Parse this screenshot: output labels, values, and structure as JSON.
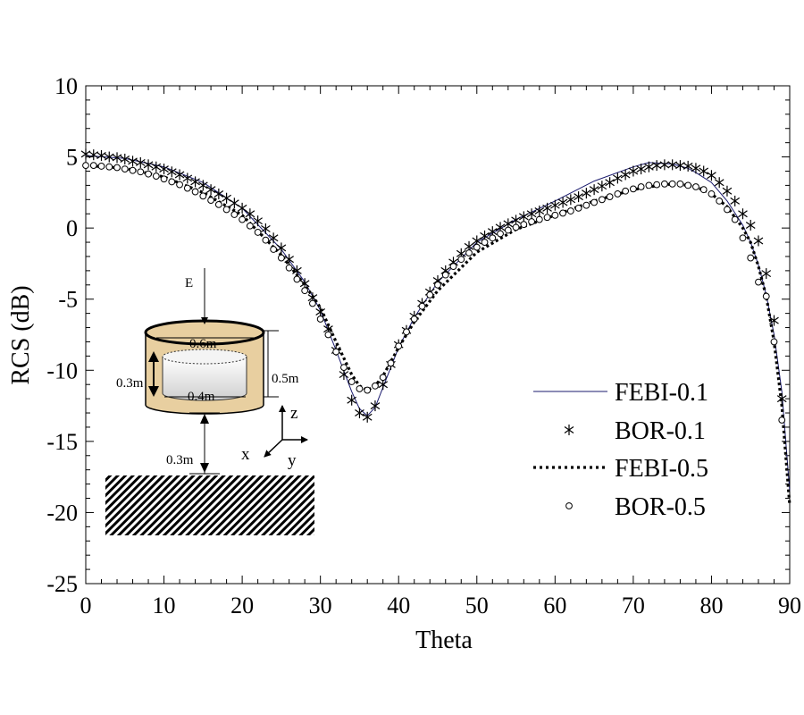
{
  "chart_data": {
    "type": "line",
    "title": "",
    "xlabel": "Theta",
    "ylabel": "RCS (dB)",
    "xlim": [
      0,
      90
    ],
    "ylim": [
      -25,
      10
    ],
    "xticks": [
      0,
      10,
      20,
      30,
      40,
      50,
      60,
      70,
      80,
      90
    ],
    "yticks": [
      10,
      5,
      0,
      -5,
      -10,
      -15,
      -20,
      -25
    ],
    "xtick_labels": [
      "0",
      "10",
      "20",
      "30",
      "40",
      "50",
      "60",
      "70",
      "80",
      "90"
    ],
    "ytick_labels": [
      "10",
      "5",
      "0",
      "-5",
      "-10",
      "-15",
      "-20",
      "-25"
    ],
    "legend_position": "right",
    "series": [
      {
        "name": "FEBI-0.1",
        "style": "thin-solid",
        "color": "#1a1a6e",
        "x": [
          0,
          5,
          10,
          15,
          20,
          25,
          28,
          30,
          32,
          34,
          35,
          36,
          37,
          38,
          40,
          42,
          45,
          50,
          55,
          60,
          65,
          70,
          72,
          75,
          77,
          78,
          80,
          82,
          84,
          85,
          86,
          87,
          88,
          89,
          90
        ],
        "y": [
          5.1,
          4.9,
          4.3,
          3.2,
          1.4,
          -1.5,
          -3.8,
          -5.8,
          -8.6,
          -11.5,
          -12.7,
          -13.2,
          -12.6,
          -11.2,
          -8.4,
          -6.3,
          -3.8,
          -1.0,
          0.6,
          1.9,
          3.3,
          4.3,
          4.6,
          4.5,
          4.2,
          3.9,
          3.2,
          1.9,
          0.2,
          -1.0,
          -2.6,
          -4.7,
          -7.5,
          -11.5,
          -18.5
        ]
      },
      {
        "name": "BOR-0.1",
        "style": "marker-asterisk",
        "color": "#000000",
        "x": [
          0,
          1,
          2,
          3,
          4,
          5,
          6,
          7,
          8,
          9,
          10,
          11,
          12,
          13,
          14,
          15,
          16,
          17,
          18,
          19,
          20,
          21,
          22,
          23,
          24,
          25,
          26,
          27,
          28,
          29,
          30,
          31,
          32,
          33,
          34,
          35,
          36,
          37,
          38,
          39,
          40,
          41,
          42,
          43,
          44,
          45,
          46,
          47,
          48,
          49,
          50,
          51,
          52,
          53,
          54,
          55,
          56,
          57,
          58,
          59,
          60,
          61,
          62,
          63,
          64,
          65,
          66,
          67,
          68,
          69,
          70,
          71,
          72,
          73,
          74,
          75,
          76,
          77,
          78,
          79,
          80,
          81,
          82,
          83,
          84,
          85,
          86,
          87,
          88,
          89
        ],
        "y": [
          5.2,
          5.15,
          5.1,
          5.0,
          4.95,
          4.85,
          4.7,
          4.6,
          4.45,
          4.3,
          4.15,
          3.95,
          3.75,
          3.5,
          3.25,
          3.0,
          2.7,
          2.4,
          2.1,
          1.75,
          1.4,
          1.0,
          0.5,
          -0.05,
          -0.7,
          -1.4,
          -2.2,
          -3.0,
          -3.9,
          -4.9,
          -5.9,
          -7.1,
          -8.6,
          -10.3,
          -12.1,
          -13.0,
          -13.3,
          -12.5,
          -11.0,
          -9.6,
          -8.2,
          -7.2,
          -6.2,
          -5.3,
          -4.5,
          -3.7,
          -3.0,
          -2.4,
          -1.8,
          -1.3,
          -0.9,
          -0.55,
          -0.25,
          0.05,
          0.3,
          0.55,
          0.8,
          1.0,
          1.2,
          1.4,
          1.6,
          1.8,
          2.0,
          2.2,
          2.45,
          2.7,
          2.95,
          3.2,
          3.5,
          3.75,
          4.0,
          4.15,
          4.3,
          4.4,
          4.45,
          4.45,
          4.4,
          4.35,
          4.2,
          4.0,
          3.7,
          3.2,
          2.6,
          1.9,
          1.0,
          0.2,
          -0.9,
          -3.2,
          -6.5,
          -12.0
        ]
      },
      {
        "name": "FEBI-0.5",
        "style": "thick-dotted",
        "color": "#000000",
        "x": [
          0,
          5,
          10,
          15,
          20,
          25,
          28,
          30,
          32,
          34,
          35,
          36,
          37,
          38,
          40,
          42,
          45,
          50,
          55,
          60,
          65,
          70,
          72,
          75,
          77,
          78,
          80,
          82,
          84,
          85,
          86,
          87,
          88,
          89,
          90
        ],
        "y": [
          4.4,
          4.2,
          3.6,
          2.5,
          0.9,
          -1.9,
          -4.0,
          -5.6,
          -8.0,
          -10.3,
          -11.1,
          -11.4,
          -11.1,
          -10.4,
          -8.4,
          -6.6,
          -4.4,
          -1.7,
          -0.1,
          0.9,
          1.9,
          2.7,
          2.9,
          3.1,
          3.0,
          2.9,
          2.4,
          1.5,
          0.0,
          -1.0,
          -2.7,
          -4.8,
          -8.0,
          -12.5,
          -19.5
        ]
      },
      {
        "name": "BOR-0.5",
        "style": "marker-circle",
        "color": "#000000",
        "x": [
          0,
          1,
          2,
          3,
          4,
          5,
          6,
          7,
          8,
          9,
          10,
          11,
          12,
          13,
          14,
          15,
          16,
          17,
          18,
          19,
          20,
          21,
          22,
          23,
          24,
          25,
          26,
          27,
          28,
          29,
          30,
          31,
          32,
          33,
          34,
          35,
          36,
          37,
          38,
          39,
          40,
          41,
          42,
          43,
          44,
          45,
          46,
          47,
          48,
          49,
          50,
          51,
          52,
          53,
          54,
          55,
          56,
          57,
          58,
          59,
          60,
          61,
          62,
          63,
          64,
          65,
          66,
          67,
          68,
          69,
          70,
          71,
          72,
          73,
          74,
          75,
          76,
          77,
          78,
          79,
          80,
          81,
          82,
          83,
          84,
          85,
          86,
          87,
          88,
          89
        ],
        "y": [
          4.4,
          4.4,
          4.35,
          4.3,
          4.25,
          4.15,
          4.05,
          3.95,
          3.8,
          3.65,
          3.45,
          3.25,
          3.05,
          2.8,
          2.55,
          2.25,
          1.95,
          1.65,
          1.3,
          0.95,
          0.6,
          0.15,
          -0.3,
          -0.85,
          -1.5,
          -2.1,
          -2.8,
          -3.6,
          -4.4,
          -5.3,
          -6.4,
          -7.5,
          -8.7,
          -9.8,
          -10.8,
          -11.3,
          -11.4,
          -11.1,
          -10.5,
          -9.5,
          -8.3,
          -7.3,
          -6.4,
          -5.5,
          -4.7,
          -4.0,
          -3.3,
          -2.7,
          -2.2,
          -1.75,
          -1.35,
          -1.0,
          -0.7,
          -0.4,
          -0.15,
          0.05,
          0.25,
          0.45,
          0.6,
          0.75,
          0.9,
          1.05,
          1.2,
          1.4,
          1.6,
          1.8,
          2.0,
          2.2,
          2.4,
          2.6,
          2.75,
          2.9,
          3.0,
          3.05,
          3.1,
          3.1,
          3.1,
          3.0,
          2.9,
          2.7,
          2.4,
          1.9,
          1.3,
          0.6,
          -0.7,
          -2.1,
          -3.8,
          -4.8,
          -8.0,
          -13.5
        ]
      }
    ],
    "inset": {
      "incident_field_label": "E",
      "outer_diameter_label": "0.6m",
      "outer_height_label": "0.5m",
      "inner_height_label": "0.3m",
      "inner_diameter_label": "0.4m",
      "gap_label": "0.3m",
      "axis_labels": [
        "z",
        "x",
        "y"
      ],
      "colors": {
        "cylinder_fill": "#e8cfa0",
        "inner_top": "#ffffff",
        "inner_bottom": "#cfcfcf"
      }
    }
  }
}
